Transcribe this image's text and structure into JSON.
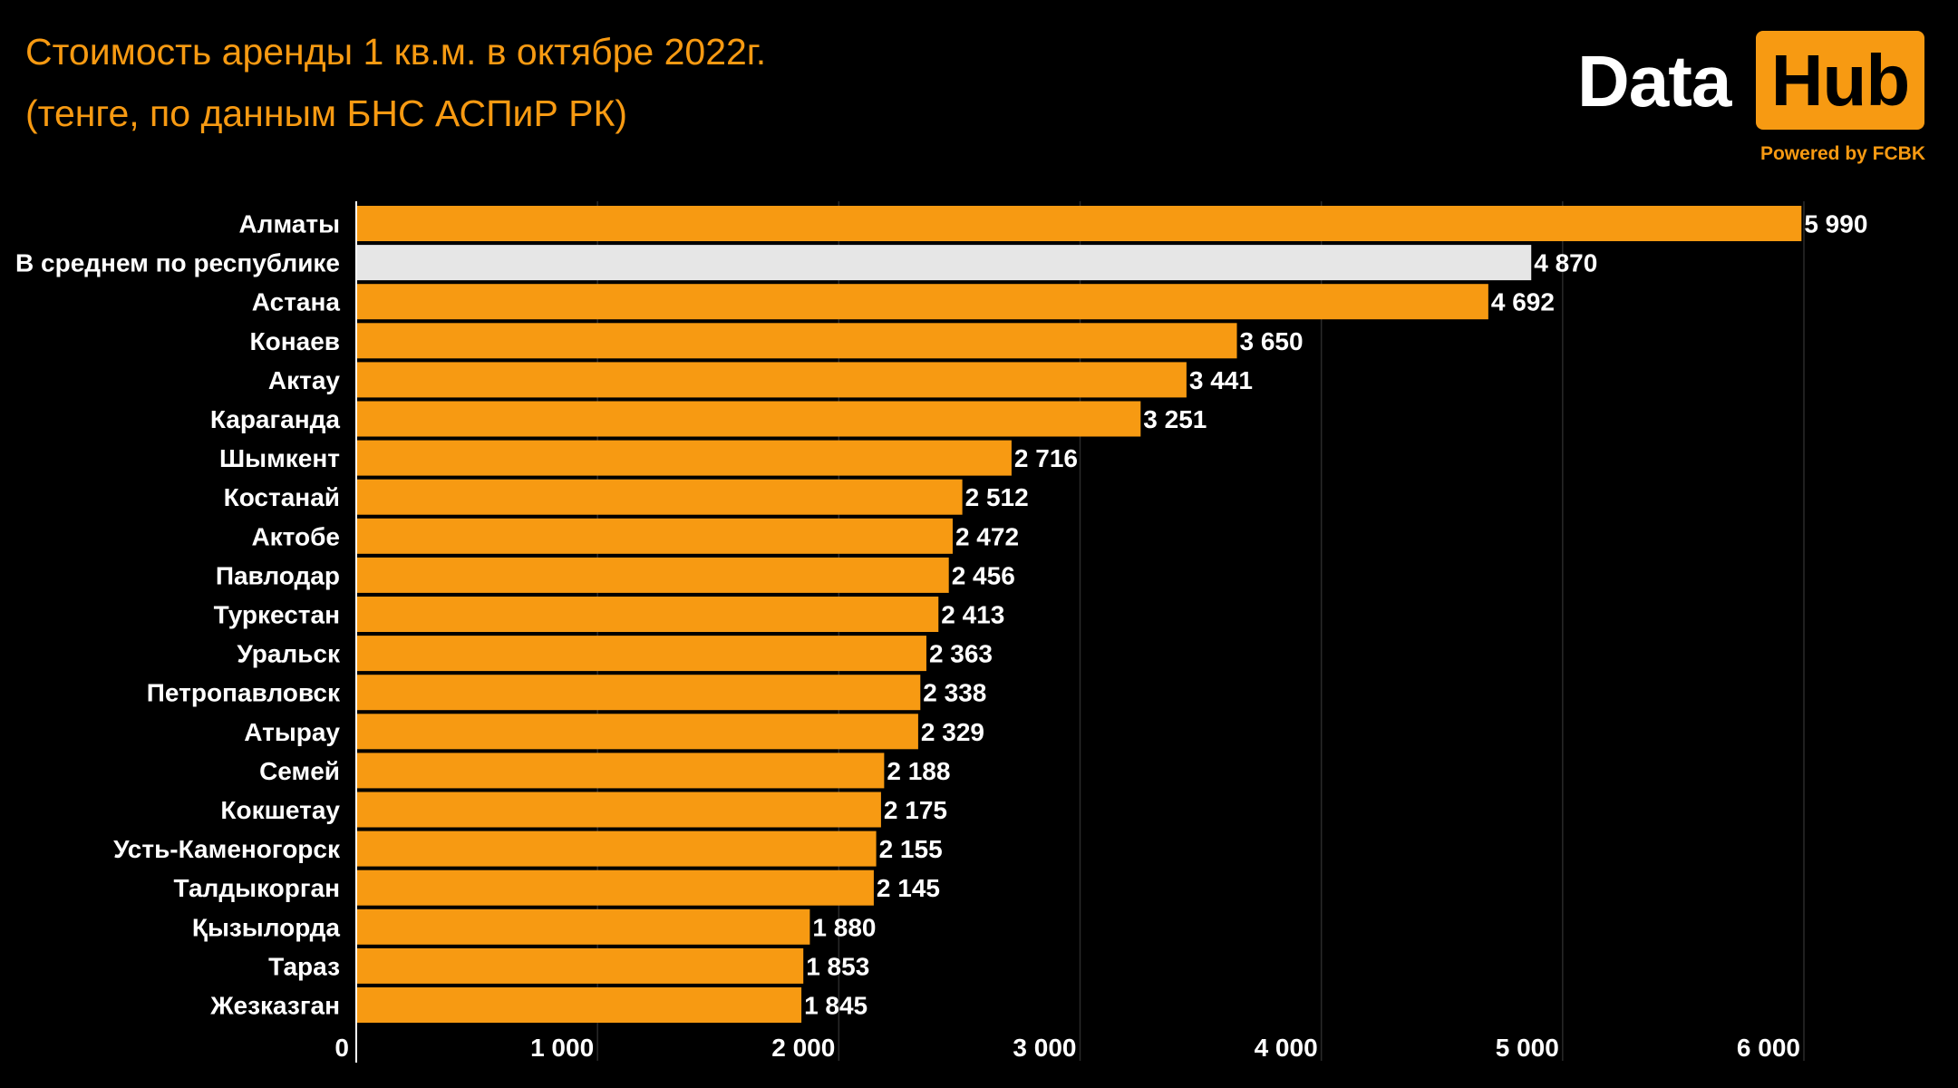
{
  "header": {
    "title_line1": "Стоимость аренды 1 кв.м. в октябре 2022г.",
    "title_line2": "(тенге, по данным БНС АСПиР РК)"
  },
  "logo": {
    "text_left": "Data",
    "text_right": "Hub",
    "powered_by": "Powered by FCBK"
  },
  "chart_data": {
    "type": "bar",
    "orientation": "horizontal",
    "title": "Стоимость аренды 1 кв.м. в октябре 2022г.",
    "subtitle": "(тенге, по данным БНС АСПиР РК)",
    "categories": [
      "Алматы",
      "В среднем по республике",
      "Астана",
      "Конаев",
      "Актау",
      "Караганда",
      "Шымкент",
      "Костанай",
      "Актобе",
      "Павлодар",
      "Туркестан",
      "Уральск",
      "Петропавловск",
      "Атырау",
      "Семей",
      "Кокшетау",
      "Усть-Каменогорск",
      "Талдыкорган",
      "Қызылорда",
      "Тараз",
      "Жезказган"
    ],
    "values": [
      5990,
      4870,
      4692,
      3650,
      3441,
      3251,
      2716,
      2512,
      2472,
      2456,
      2413,
      2363,
      2338,
      2329,
      2188,
      2175,
      2155,
      2145,
      1880,
      1853,
      1845
    ],
    "value_labels": [
      "5 990",
      "4 870",
      "4 692",
      "3 650",
      "3 441",
      "3 251",
      "2 716",
      "2 512",
      "2 472",
      "2 456",
      "2 413",
      "2 363",
      "2 338",
      "2 329",
      "2 188",
      "2 175",
      "2 155",
      "2 145",
      "1 880",
      "1 853",
      "1 845"
    ],
    "highlight_category": "В среднем по республике",
    "xlim": [
      0,
      6000
    ],
    "xticks": [
      0,
      1000,
      2000,
      3000,
      4000,
      5000,
      6000
    ],
    "xtick_labels": [
      "0",
      "1 000",
      "2 000",
      "3 000",
      "4 000",
      "5 000",
      "6 000"
    ],
    "grid": true,
    "colors": {
      "bar": "#f79a12",
      "highlight": "#e6e6e6",
      "background": "#000000",
      "grid": "#2a2a2a",
      "text": "#ffffff"
    }
  }
}
